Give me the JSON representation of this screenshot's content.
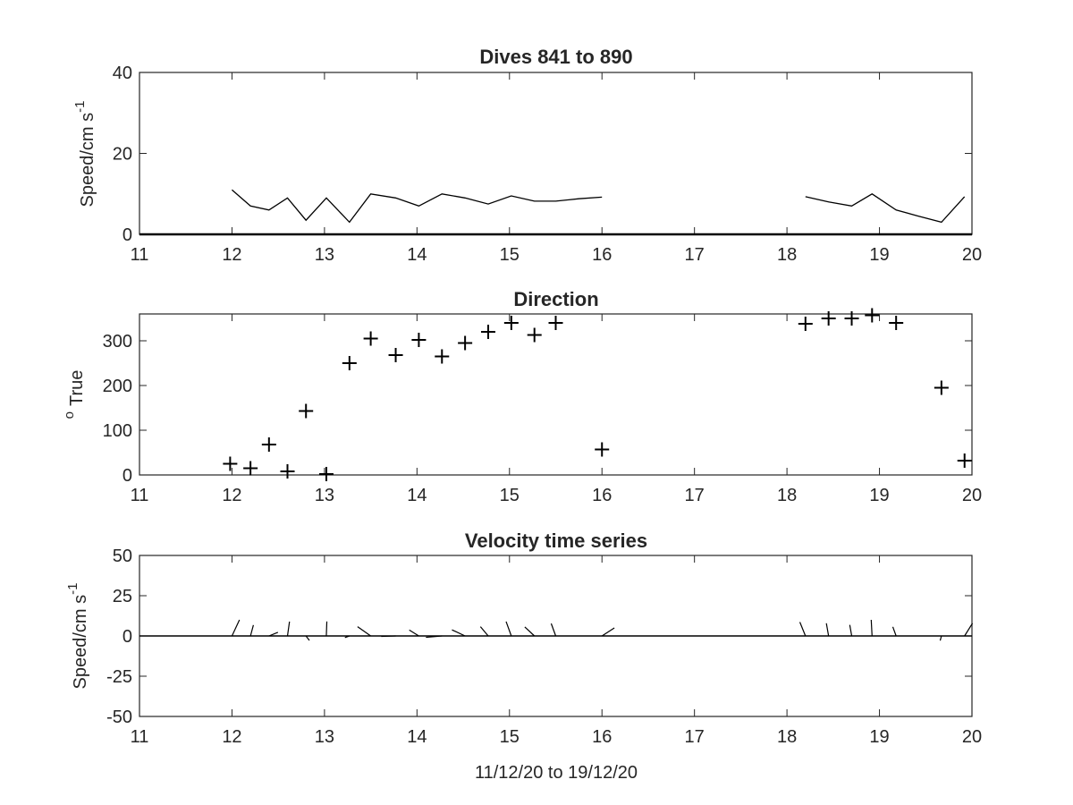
{
  "figure": {
    "xlabel_bottom": "11/12/20 to 19/12/20",
    "colors": {
      "line": "#000000",
      "axis": "#262626",
      "background": "#ffffff"
    }
  },
  "chart_data": [
    {
      "type": "line",
      "title": "Dives 841 to 890",
      "ylabel": "Speed/cm s",
      "ylabel_superscript": "-1",
      "xlim": [
        11,
        20
      ],
      "ylim": [
        0,
        40
      ],
      "x_ticks": [
        11,
        12,
        13,
        14,
        15,
        16,
        17,
        18,
        19,
        20
      ],
      "y_ticks": [
        0,
        20,
        40
      ],
      "grid": false,
      "zero_line": true,
      "series": [
        {
          "segments": [
            {
              "x": [
                12.0,
                12.2,
                12.4,
                12.6,
                12.8,
                13.02,
                13.27,
                13.5,
                13.77,
                14.02,
                14.27,
                14.52,
                14.77,
                15.02,
                15.27,
                15.5,
                15.75,
                16.0
              ],
              "y": [
                11,
                7,
                6,
                9,
                3.5,
                9,
                3,
                10,
                9,
                7,
                10,
                9,
                7.5,
                9.5,
                8.2,
                8.2,
                8.8,
                9.2
              ]
            },
            {
              "x": [
                18.2,
                18.45,
                18.7,
                18.92,
                19.18,
                19.42,
                19.67,
                19.92
              ],
              "y": [
                9.3,
                8,
                7,
                10,
                6,
                4.5,
                3,
                9.3
              ]
            }
          ]
        }
      ]
    },
    {
      "type": "scatter",
      "title": "Direction",
      "ylabel": "True",
      "ylabel_prefix": "o",
      "xlim": [
        11,
        20
      ],
      "ylim": [
        0,
        360
      ],
      "x_ticks": [
        11,
        12,
        13,
        14,
        15,
        16,
        17,
        18,
        19,
        20
      ],
      "y_ticks": [
        0,
        100,
        200,
        300
      ],
      "grid": false,
      "marker": "+",
      "x": [
        11.98,
        12.2,
        12.4,
        12.6,
        12.8,
        13.02,
        13.27,
        13.5,
        13.77,
        14.02,
        14.27,
        14.52,
        14.77,
        15.02,
        15.27,
        15.5,
        16.0,
        18.2,
        18.45,
        18.7,
        18.92,
        19.18,
        19.67,
        19.92
      ],
      "y": [
        25,
        15,
        68,
        8,
        143,
        2,
        250,
        305,
        268,
        302,
        265,
        295,
        320,
        340,
        313,
        340,
        57,
        338,
        350,
        350,
        357,
        340,
        195,
        32
      ]
    },
    {
      "type": "line",
      "title": "Velocity time series",
      "ylabel": "Speed/cm s",
      "ylabel_superscript": "-1",
      "xlabel": "11/12/20 to 19/12/20",
      "xlim": [
        11,
        20
      ],
      "ylim": [
        -50,
        50
      ],
      "x_ticks": [
        11,
        12,
        13,
        14,
        15,
        16,
        17,
        18,
        19,
        20
      ],
      "y_ticks": [
        -50,
        -25,
        0,
        25,
        50
      ],
      "grid": false,
      "zero_line": true,
      "stick_plot": true,
      "sticks": {
        "x": [
          12.0,
          12.2,
          12.4,
          12.6,
          12.8,
          13.02,
          13.27,
          13.5,
          13.77,
          14.02,
          14.27,
          14.52,
          14.77,
          15.02,
          15.27,
          15.5,
          16.0,
          18.2,
          18.45,
          18.7,
          18.92,
          19.18,
          19.67,
          19.92
        ],
        "speed": [
          11,
          7,
          6,
          9,
          3.5,
          9,
          3,
          10,
          9,
          7,
          10,
          9,
          7.5,
          9.5,
          8.2,
          8.2,
          9.2,
          9.3,
          8,
          7,
          10,
          6,
          3,
          9.3
        ],
        "direction": [
          25,
          15,
          68,
          8,
          143,
          2,
          250,
          305,
          268,
          302,
          265,
          295,
          320,
          340,
          313,
          340,
          57,
          338,
          350,
          350,
          357,
          340,
          195,
          32
        ]
      }
    }
  ]
}
